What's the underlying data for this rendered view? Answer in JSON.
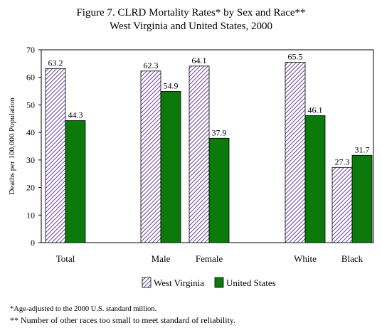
{
  "figure": {
    "title_line1": "Figure 7.  CLRD Mortality Rates* by Sex and Race**",
    "title_line2": "West Virginia and United States, 2000"
  },
  "footnotes": {
    "note1": "*Age-adjusted to the 2000 U.S. standard million.",
    "note2": "** Number of other races too small to meet standard of reliability."
  },
  "colors": {
    "west_virginia_fill": "#ffffff",
    "west_virginia_hatch": "#6b3fa0",
    "united_states": "#0b7a0b"
  },
  "chart_data": {
    "type": "bar",
    "title": "Figure 7.  CLRD Mortality Rates* by Sex and Race**",
    "subtitle": "West Virginia and United States, 2000",
    "xlabel": "",
    "ylabel": "Deaths per 100,000 Population",
    "ylim": [
      0,
      70
    ],
    "yticks": [
      "0",
      "10",
      "20",
      "30",
      "40",
      "50",
      "60",
      "70"
    ],
    "categories": [
      "Total",
      "Male",
      "Female",
      "White",
      "Black"
    ],
    "category_groups": [
      [
        "Total"
      ],
      [
        "Male",
        "Female"
      ],
      [
        "White",
        "Black"
      ]
    ],
    "series": [
      {
        "name": "West Virginia",
        "values": [
          63.2,
          62.3,
          64.1,
          65.5,
          27.3
        ],
        "labels": [
          "63.2",
          "62.3",
          "64.1",
          "65.5",
          "27.3"
        ]
      },
      {
        "name": "United States",
        "values": [
          44.3,
          54.9,
          37.9,
          46.1,
          31.7
        ],
        "labels": [
          "44.3",
          "54.9",
          "37.9",
          "46.1",
          "31.7"
        ]
      }
    ],
    "legend_position": "bottom",
    "grid": false
  }
}
